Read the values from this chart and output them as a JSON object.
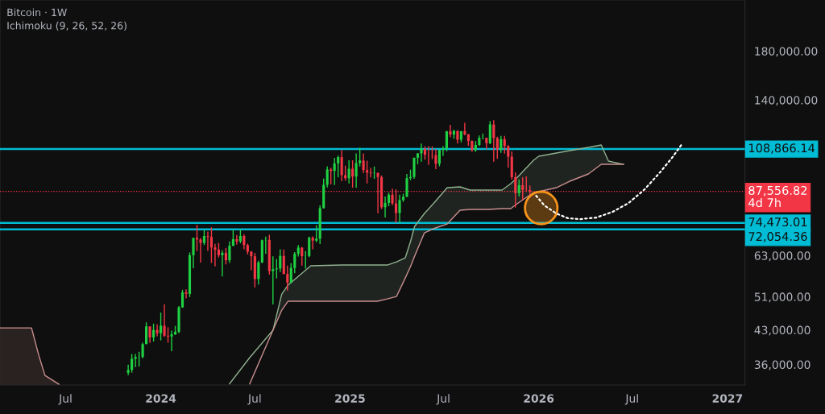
{
  "chart_data": {
    "type": "candlestick",
    "title": "Bitcoin · 1W",
    "subtitle": "Ichimoku (9, 26, 52, 26)",
    "log": true,
    "grid": false,
    "ylim": [
      32400,
      234000
    ],
    "yticks": [
      {
        "value": 36000,
        "label": "36,000.00"
      },
      {
        "value": 43000,
        "label": "43,000.00"
      },
      {
        "value": 51000,
        "label": "51,000.00"
      },
      {
        "value": 63000,
        "label": "63,000.00"
      },
      {
        "value": 140000,
        "label": "140,000.00"
      },
      {
        "value": 180000,
        "label": "180,000.00"
      }
    ],
    "xlim": [
      "2023-02-24",
      "2027-02-04"
    ],
    "xticks": [
      {
        "value": "2023-07-01",
        "label": "Jul"
      },
      {
        "value": "2024-01-01",
        "label": "2024"
      },
      {
        "value": "2024-07-01",
        "label": "Jul"
      },
      {
        "value": "2025-01-01",
        "label": "2025"
      },
      {
        "value": "2025-07-01",
        "label": "Jul"
      },
      {
        "value": "2026-01-01",
        "label": "2026"
      },
      {
        "value": "2026-07-01",
        "label": "Jul"
      },
      {
        "value": "2027-01-01",
        "label": "2027"
      }
    ],
    "x": [
      "2023-10-30",
      "2023-11-06",
      "2023-11-13",
      "2023-11-20",
      "2023-11-27",
      "2023-12-04",
      "2023-12-11",
      "2023-12-18",
      "2023-12-25",
      "2024-01-01",
      "2024-01-08",
      "2024-01-15",
      "2024-01-22",
      "2024-01-29",
      "2024-02-05",
      "2024-02-12",
      "2024-02-19",
      "2024-02-26",
      "2024-03-04",
      "2024-03-11",
      "2024-03-18",
      "2024-03-25",
      "2024-04-01",
      "2024-04-08",
      "2024-04-15",
      "2024-04-22",
      "2024-04-29",
      "2024-05-06",
      "2024-05-13",
      "2024-05-20",
      "2024-05-27",
      "2024-06-03",
      "2024-06-10",
      "2024-06-17",
      "2024-06-24",
      "2024-07-01",
      "2024-07-08",
      "2024-07-15",
      "2024-07-22",
      "2024-07-29",
      "2024-08-05",
      "2024-08-12",
      "2024-08-19",
      "2024-08-26",
      "2024-09-02",
      "2024-09-09",
      "2024-09-16",
      "2024-09-23",
      "2024-09-30",
      "2024-10-07",
      "2024-10-14",
      "2024-10-21",
      "2024-10-28",
      "2024-11-04",
      "2024-11-11",
      "2024-11-18",
      "2024-11-25",
      "2024-12-02",
      "2024-12-09",
      "2024-12-16",
      "2024-12-23",
      "2024-12-30",
      "2025-01-06",
      "2025-01-13",
      "2025-01-20",
      "2025-01-27",
      "2025-02-03",
      "2025-02-10",
      "2025-02-17",
      "2025-02-24",
      "2025-03-03",
      "2025-03-10",
      "2025-03-17",
      "2025-03-24",
      "2025-03-31",
      "2025-04-07",
      "2025-04-14",
      "2025-04-21",
      "2025-04-28",
      "2025-05-05",
      "2025-05-12",
      "2025-05-19",
      "2025-05-26",
      "2025-06-02",
      "2025-06-09",
      "2025-06-16",
      "2025-06-23",
      "2025-06-30",
      "2025-07-07",
      "2025-07-14",
      "2025-07-21",
      "2025-07-28",
      "2025-08-04",
      "2025-08-11",
      "2025-08-18",
      "2025-08-25",
      "2025-09-01",
      "2025-09-08",
      "2025-09-15",
      "2025-09-22",
      "2025-09-29",
      "2025-10-06",
      "2025-10-13",
      "2025-10-20",
      "2025-10-27",
      "2025-11-03",
      "2025-11-10",
      "2025-11-17",
      "2025-11-24",
      "2025-12-01",
      "2025-12-08",
      "2025-12-15"
    ],
    "ohlc": [
      [
        34500,
        35980,
        34080,
        35010
      ],
      [
        35010,
        37980,
        34530,
        37060
      ],
      [
        37060,
        37990,
        35540,
        37400
      ],
      [
        37400,
        38430,
        35630,
        37450
      ],
      [
        37450,
        40250,
        37150,
        39970
      ],
      [
        39970,
        44700,
        39970,
        43780
      ],
      [
        43780,
        43800,
        40220,
        41370
      ],
      [
        41370,
        44400,
        40520,
        42990
      ],
      [
        42990,
        44250,
        41600,
        42280
      ],
      [
        42280,
        47000,
        40750,
        43920
      ],
      [
        43920,
        49050,
        41500,
        41730
      ],
      [
        41730,
        43580,
        40280,
        41580
      ],
      [
        41580,
        42840,
        38550,
        42030
      ],
      [
        42030,
        43880,
        41880,
        42580
      ],
      [
        42580,
        48600,
        42260,
        48300
      ],
      [
        48300,
        52820,
        48160,
        52140
      ],
      [
        52140,
        52980,
        50520,
        51730
      ],
      [
        51730,
        64000,
        50900,
        63110
      ],
      [
        63110,
        69000,
        59000,
        68960
      ],
      [
        68960,
        73780,
        64500,
        68390
      ],
      [
        68390,
        68900,
        60770,
        67210
      ],
      [
        67210,
        71770,
        66500,
        69650
      ],
      [
        69650,
        71250,
        64490,
        69360
      ],
      [
        69360,
        72800,
        60660,
        65660
      ],
      [
        65660,
        66870,
        59600,
        64940
      ],
      [
        64940,
        67230,
        62380,
        63120
      ],
      [
        63120,
        64730,
        56550,
        63880
      ],
      [
        63880,
        65500,
        60180,
        61480
      ],
      [
        61480,
        67700,
        60630,
        66270
      ],
      [
        66270,
        71980,
        66060,
        68520
      ],
      [
        68520,
        70000,
        66600,
        67770
      ],
      [
        67770,
        71990,
        67100,
        69650
      ],
      [
        69650,
        70200,
        65070,
        66490
      ],
      [
        66490,
        66950,
        63380,
        64250
      ],
      [
        64250,
        64500,
        58400,
        62770
      ],
      [
        62770,
        63860,
        53500,
        55850
      ],
      [
        55850,
        61300,
        54260,
        60800
      ],
      [
        60800,
        68370,
        60600,
        68160
      ],
      [
        68160,
        69400,
        63500,
        68250
      ],
      [
        68250,
        70080,
        57120,
        58160
      ],
      [
        58160,
        62740,
        49000,
        58710
      ],
      [
        58710,
        61850,
        56080,
        58960
      ],
      [
        58960,
        65050,
        57850,
        62880
      ],
      [
        62880,
        64960,
        57200,
        57300
      ],
      [
        57300,
        59800,
        52550,
        54840
      ],
      [
        54840,
        60600,
        54590,
        59130
      ],
      [
        59130,
        64130,
        57500,
        63580
      ],
      [
        63580,
        66500,
        62700,
        65600
      ],
      [
        65600,
        65800,
        59800,
        62820
      ],
      [
        62820,
        64450,
        58900,
        62850
      ],
      [
        62850,
        69400,
        62500,
        69030
      ],
      [
        69030,
        69500,
        65050,
        68010
      ],
      [
        68010,
        73600,
        67450,
        68700
      ],
      [
        68700,
        81500,
        66800,
        80370
      ],
      [
        80370,
        93480,
        80200,
        90600
      ],
      [
        90600,
        99600,
        89380,
        98000
      ],
      [
        98000,
        98870,
        90790,
        97280
      ],
      [
        97280,
        104000,
        90500,
        101110
      ],
      [
        101110,
        105250,
        94150,
        104400
      ],
      [
        104400,
        108350,
        92230,
        95190
      ],
      [
        95190,
        99960,
        92500,
        93720
      ],
      [
        93720,
        102700,
        91200,
        98360
      ],
      [
        98360,
        102700,
        89250,
        94500
      ],
      [
        94500,
        106400,
        89260,
        101330
      ],
      [
        101330,
        109590,
        99530,
        102600
      ],
      [
        102600,
        106450,
        96150,
        97700
      ],
      [
        97700,
        102500,
        91230,
        96460
      ],
      [
        96460,
        98830,
        94080,
        96120
      ],
      [
        96120,
        99500,
        93400,
        96270
      ],
      [
        96270,
        96500,
        78260,
        94270
      ],
      [
        94270,
        95000,
        80000,
        80730
      ],
      [
        80730,
        85300,
        76600,
        82570
      ],
      [
        82570,
        87000,
        81150,
        86080
      ],
      [
        86080,
        88770,
        81600,
        82330
      ],
      [
        82330,
        88500,
        74500,
        78370
      ],
      [
        78370,
        86100,
        74500,
        83760
      ],
      [
        83760,
        86500,
        83000,
        85170
      ],
      [
        85170,
        95750,
        85100,
        93750
      ],
      [
        93750,
        97900,
        92800,
        94300
      ],
      [
        94300,
        104150,
        93380,
        104100
      ],
      [
        104100,
        106500,
        100700,
        106450
      ],
      [
        106450,
        111980,
        102000,
        109000
      ],
      [
        109000,
        110400,
        103100,
        105700
      ],
      [
        105700,
        110530,
        100370,
        105600
      ],
      [
        105600,
        110400,
        103400,
        105500
      ],
      [
        105500,
        108950,
        98200,
        100950
      ],
      [
        100950,
        108500,
        99600,
        108380
      ],
      [
        108380,
        110500,
        105100,
        109200
      ],
      [
        109200,
        119500,
        107500,
        119200
      ],
      [
        119200,
        123220,
        115700,
        117300
      ],
      [
        117300,
        120250,
        114720,
        119400
      ],
      [
        119400,
        119800,
        112000,
        114200
      ],
      [
        114200,
        119300,
        112650,
        119300
      ],
      [
        119300,
        124470,
        116800,
        117400
      ],
      [
        117400,
        117600,
        110700,
        113500
      ],
      [
        113500,
        113700,
        107300,
        108250
      ],
      [
        108250,
        113350,
        107250,
        111140
      ],
      [
        111140,
        116700,
        110600,
        115250
      ],
      [
        115250,
        117900,
        114400,
        115300
      ],
      [
        115300,
        115400,
        108600,
        112150
      ],
      [
        112150,
        125700,
        111600,
        123500
      ],
      [
        123500,
        126200,
        102000,
        115150
      ],
      [
        115150,
        115950,
        103500,
        108650
      ],
      [
        108650,
        116400,
        106700,
        114500
      ],
      [
        114500,
        116400,
        106300,
        110500
      ],
      [
        110500,
        111000,
        98900,
        104700
      ],
      [
        104700,
        107500,
        93000,
        94200
      ],
      [
        94200,
        96600,
        80600,
        86800
      ],
      [
        86800,
        93100,
        85300,
        90400
      ],
      [
        90400,
        94200,
        83800,
        88200
      ],
      [
        88200,
        94600,
        87500,
        88150
      ],
      [
        88150,
        90300,
        85200,
        87556.82
      ]
    ],
    "colors": [
      "#1fd142",
      "#1fd142",
      "#1fd142",
      "#1fd142",
      "#1fd142",
      "#1fd142",
      "#f23645",
      "#1fd142",
      "#f23645",
      "#1fd142",
      "#f23645",
      "#f23645",
      "#1fd142",
      "#1fd142",
      "#1fd142",
      "#1fd142",
      "#f23645",
      "#1fd142",
      "#1fd142",
      "#f23645",
      "#f23645",
      "#1fd142",
      "#f23645",
      "#f23645",
      "#f23645",
      "#f23645",
      "#1fd142",
      "#f23645",
      "#1fd142",
      "#1fd142",
      "#f23645",
      "#1fd142",
      "#f23645",
      "#f23645",
      "#f23645",
      "#f23645",
      "#1fd142",
      "#1fd142",
      "#1fd142",
      "#f23645",
      "#1fd142",
      "#1fd142",
      "#1fd142",
      "#f23645",
      "#f23645",
      "#1fd142",
      "#1fd142",
      "#1fd142",
      "#f23645",
      "#1fd142",
      "#1fd142",
      "#f23645",
      "#1fd142",
      "#1fd142",
      "#1fd142",
      "#1fd142",
      "#f23645",
      "#1fd142",
      "#1fd142",
      "#f23645",
      "#f23645",
      "#1fd142",
      "#f23645",
      "#1fd142",
      "#1fd142",
      "#f23645",
      "#f23645",
      "#f23645",
      "#1fd142",
      "#f23645",
      "#f23645",
      "#1fd142",
      "#1fd142",
      "#f23645",
      "#f23645",
      "#1fd142",
      "#1fd142",
      "#1fd142",
      "#1fd142",
      "#1fd142",
      "#1fd142",
      "#1fd142",
      "#f23645",
      "#f23645",
      "#f23645",
      "#f23645",
      "#1fd142",
      "#1fd142",
      "#1fd142",
      "#f23645",
      "#1fd142",
      "#f23645",
      "#1fd142",
      "#f23645",
      "#f23645",
      "#f23645",
      "#1fd142",
      "#1fd142",
      "#1fd142",
      "#f23645",
      "#1fd142",
      "#f23645",
      "#f23645",
      "#1fd142",
      "#f23645",
      "#f23645",
      "#f23645",
      "#f23645",
      "#1fd142",
      "#f23645",
      "#f23645",
      "#f23645"
    ],
    "series": [
      {
        "type": "line",
        "color": "#8fb08f",
        "x": [
          "2024-05-13",
          "2024-06-21",
          "2024-08-05",
          "2024-08-22",
          "2024-09-03",
          "2024-10-17",
          "2024-12-17",
          "2025-02-23",
          "2025-03-14",
          "2025-04-01",
          "2025-04-18",
          "2025-04-28",
          "2025-05-06",
          "2025-05-25",
          "2025-06-11",
          "2025-07-08",
          "2025-08-02",
          "2025-08-21",
          "2025-09-25",
          "2025-10-22",
          "2025-11-08",
          "2025-11-18",
          "2025-12-22",
          "2026-01-01",
          "2026-02-04",
          "2026-03-02",
          "2026-04-07",
          "2026-05-02",
          "2026-05-16",
          "2026-06-14"
        ],
        "values": [
          32600,
          37290,
          42920,
          51700,
          54110,
          59760,
          60000,
          60000,
          60000,
          61000,
          62280,
          67650,
          73180,
          78190,
          82170,
          89260,
          89630,
          88160,
          88160,
          88160,
          91120,
          93410,
          102740,
          104890,
          106630,
          107960,
          109770,
          111140,
          102310,
          100640
        ],
        "upper": [
          null,
          null,
          42920,
          51700,
          54110,
          59760,
          60000,
          60000,
          60000,
          61000,
          62280,
          67650,
          73180,
          78190,
          82170,
          89260,
          89630,
          88160,
          88160,
          88160,
          91120,
          93410,
          102740,
          104890,
          106630,
          107960,
          109770,
          111140,
          102310,
          100640
        ],
        "lower": [
          null,
          null,
          42920,
          47590,
          49810,
          49810,
          49810,
          49810,
          50430,
          51060,
          56150,
          59510,
          62790,
          70800,
          72280,
          74090,
          79490,
          79820,
          79820,
          80150,
          80150,
          81820,
          87070,
          87430,
          89260,
          92260,
          95760,
          100640,
          100640,
          100640
        ]
      },
      {
        "type": "line",
        "color": "#c98f8f",
        "x": [
          "2024-06-21",
          "2024-08-05",
          "2024-08-22",
          "2024-09-03",
          "2024-10-17",
          "2024-12-17",
          "2025-02-23",
          "2025-03-14",
          "2025-04-01",
          "2025-04-18",
          "2025-04-28",
          "2025-05-06",
          "2025-05-25",
          "2025-06-11",
          "2025-07-08",
          "2025-08-02",
          "2025-08-21",
          "2025-09-25",
          "2025-10-22",
          "2025-11-08",
          "2025-11-18",
          "2025-12-22",
          "2026-01-01",
          "2026-02-04",
          "2026-03-02",
          "2026-04-07",
          "2026-05-02",
          "2026-05-16",
          "2026-06-14"
        ],
        "values": [
          32600,
          42920,
          47590,
          49810,
          49810,
          49810,
          49810,
          50430,
          51060,
          56150,
          59510,
          62790,
          70800,
          72280,
          74090,
          79490,
          79820,
          79820,
          80150,
          80150,
          81820,
          87070,
          87430,
          89260,
          92260,
          95760,
          100640,
          100640,
          100640
        ]
      },
      {
        "type": "area",
        "color": "#c98f8f",
        "x": [
          "2023-02-24",
          "2023-04-26",
          "2023-05-10",
          "2023-05-22",
          "2023-06-18"
        ],
        "values": [
          43450,
          43450,
          37740,
          34040,
          32530
        ]
      },
      {
        "type": "line",
        "color": "#ffffff",
        "line_style": "dotted",
        "x": [
          "2025-12-27",
          "2026-01-12",
          "2026-02-04",
          "2026-02-27",
          "2026-03-23",
          "2026-04-23",
          "2026-05-24",
          "2026-06-24",
          "2026-07-25",
          "2026-08-25",
          "2026-09-17",
          "2026-10-06"
        ],
        "values": [
          85630,
          81500,
          78190,
          76270,
          75950,
          76590,
          78840,
          82510,
          88520,
          96960,
          104460,
          112060
        ]
      }
    ],
    "ref_lines": [
      {
        "axis": "y",
        "value": 108866.14,
        "label": "108,866.14",
        "color": "#00bcd4",
        "line_style": "solid"
      },
      {
        "axis": "y",
        "value": 87556.82,
        "label": "87,556.82\n4d 7h",
        "color": "#f23645",
        "line_style": "dotted"
      },
      {
        "axis": "y",
        "value": 74473.01,
        "label": "74,473.01",
        "color": "#00bcd4",
        "line_style": "solid"
      },
      {
        "axis": "y",
        "value": 72054.36,
        "label": "72,054.36",
        "color": "#00bcd4",
        "line_style": "solid"
      }
    ]
  }
}
